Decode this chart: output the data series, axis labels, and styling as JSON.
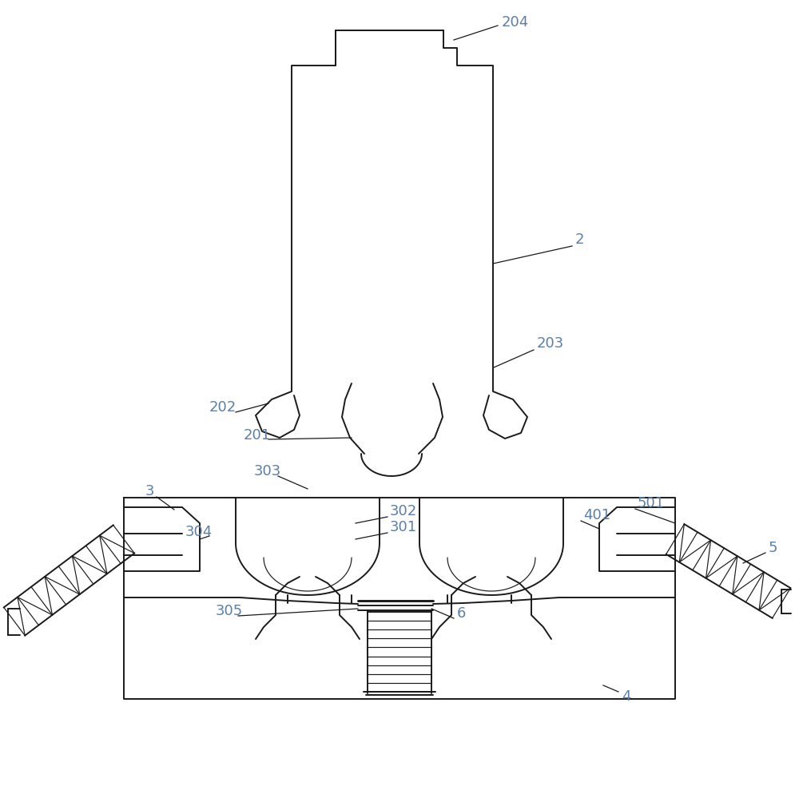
{
  "bg_color": "#ffffff",
  "line_color": "#1a1a1a",
  "label_color": "#5b7fa6",
  "lw": 1.4,
  "lwt": 0.85,
  "fs": 13
}
